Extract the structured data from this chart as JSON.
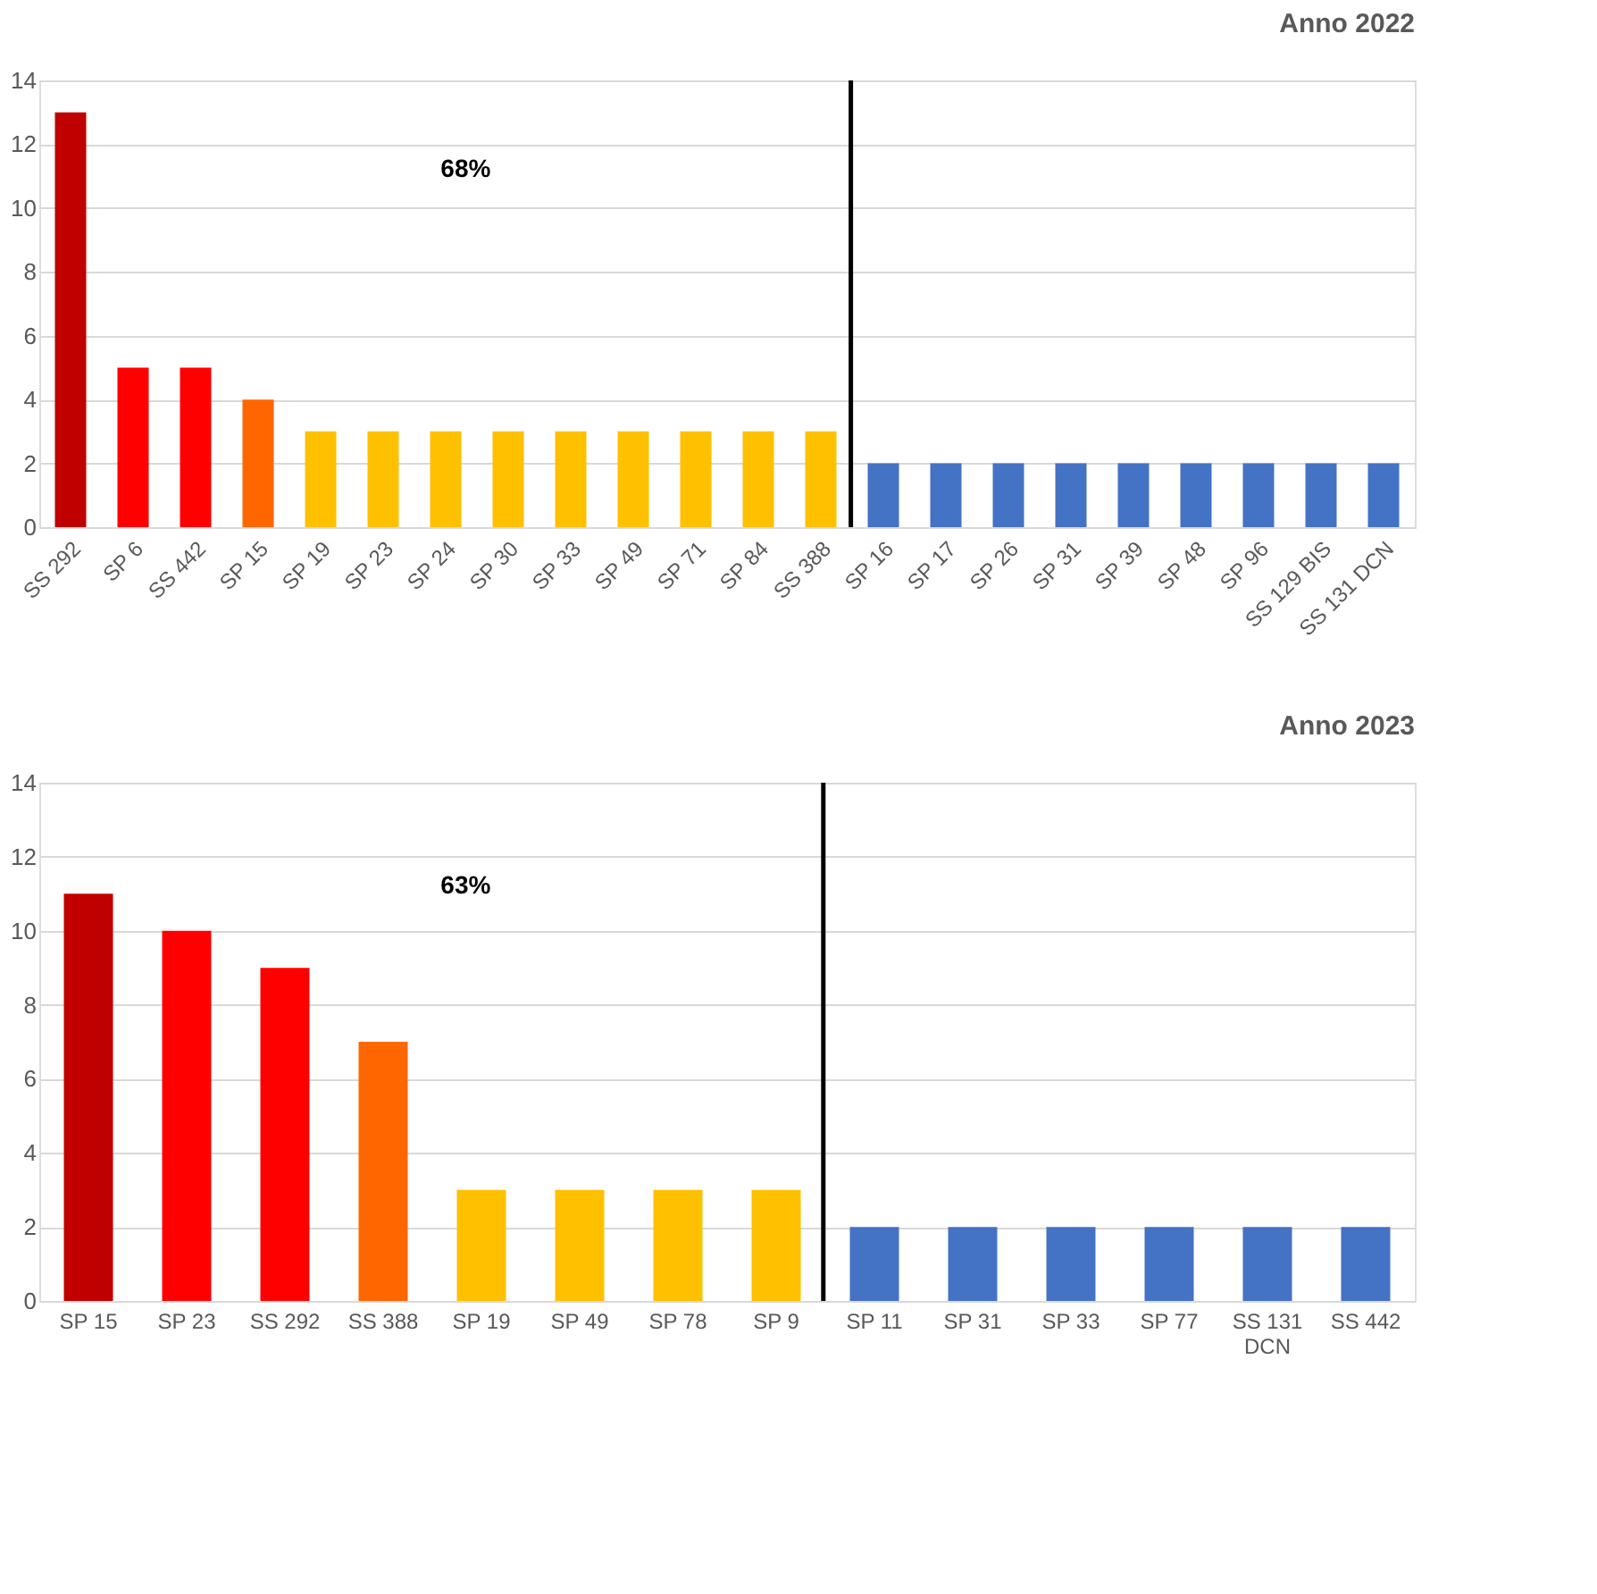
{
  "chart_data": [
    {
      "type": "bar",
      "title": "Anno 2022",
      "categories": [
        "SS 292",
        "SP 6",
        "SS 442",
        "SP 15",
        "SP 19",
        "SP 23",
        "SP 24",
        "SP 30",
        "SP 33",
        "SP 49",
        "SP 71",
        "SP 84",
        "SS 388",
        "SP 16",
        "SP 17",
        "SP 26",
        "SP 31",
        "SP 39",
        "SP 48",
        "SP 96",
        "SS 129 BIS",
        "SS 131 DCN"
      ],
      "values": [
        13,
        5,
        5,
        4,
        3,
        3,
        3,
        3,
        3,
        3,
        3,
        3,
        3,
        2,
        2,
        2,
        2,
        2,
        2,
        2,
        2,
        2
      ],
      "colors": [
        "#c00000",
        "#ff0000",
        "#ff0000",
        "#ff6600",
        "#ffc000",
        "#ffc000",
        "#ffc000",
        "#ffc000",
        "#ffc000",
        "#ffc000",
        "#ffc000",
        "#ffc000",
        "#ffc000",
        "#4472c4",
        "#4472c4",
        "#4472c4",
        "#4472c4",
        "#4472c4",
        "#4472c4",
        "#4472c4",
        "#4472c4",
        "#4472c4"
      ],
      "ylim": [
        0,
        14
      ],
      "yticks": [
        0,
        2,
        4,
        6,
        8,
        10,
        12,
        14
      ],
      "grid": "y",
      "ref_lines": [
        {
          "axis": "x",
          "value": "SP 16",
          "color": "#000000"
        }
      ],
      "annotations": [
        "68%"
      ]
    },
    {
      "type": "bar",
      "title": "Anno 2023",
      "categories": [
        "SP 15",
        "SP 23",
        "SS 292",
        "SS 388",
        "SP 19",
        "SP 49",
        "SP 78",
        "SP 9",
        "SP 11",
        "SP 31",
        "SP 33",
        "SP 77",
        "SS 131 DCN",
        "SS 442"
      ],
      "values": [
        11,
        10,
        9,
        7,
        3,
        3,
        3,
        3,
        2,
        2,
        2,
        2,
        2,
        2
      ],
      "colors": [
        "#c00000",
        "#ff0000",
        "#ff0000",
        "#ff6600",
        "#ffc000",
        "#ffc000",
        "#ffc000",
        "#ffc000",
        "#4472c4",
        "#4472c4",
        "#4472c4",
        "#4472c4",
        "#4472c4",
        "#4472c4"
      ],
      "ylim": [
        0,
        14
      ],
      "yticks": [
        0,
        2,
        4,
        6,
        8,
        10,
        12,
        14
      ],
      "grid": "y",
      "ref_lines": [
        {
          "axis": "x",
          "value": "SP 11",
          "color": "#000000"
        }
      ],
      "annotations": [
        "63%"
      ]
    }
  ]
}
